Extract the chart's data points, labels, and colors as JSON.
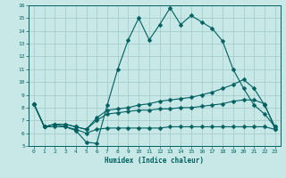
{
  "xlabel": "Humidex (Indice chaleur)",
  "bg_color": "#c8e8e8",
  "grid_color": "#a0c8c8",
  "line_color": "#006060",
  "xlim": [
    -0.5,
    23.5
  ],
  "ylim": [
    5,
    16
  ],
  "xticks": [
    0,
    1,
    2,
    3,
    4,
    5,
    6,
    7,
    8,
    9,
    10,
    11,
    12,
    13,
    14,
    15,
    16,
    17,
    18,
    19,
    20,
    21,
    22,
    23
  ],
  "yticks": [
    5,
    6,
    7,
    8,
    9,
    10,
    11,
    12,
    13,
    14,
    15,
    16
  ],
  "series1_y": [
    8.3,
    6.5,
    6.7,
    6.5,
    6.2,
    5.3,
    5.2,
    8.2,
    11.0,
    13.3,
    15.0,
    13.3,
    14.5,
    15.8,
    14.5,
    15.2,
    14.7,
    14.2,
    13.2,
    11.0,
    9.5,
    8.2,
    7.5,
    6.5
  ],
  "series2_y": [
    8.3,
    6.5,
    6.7,
    6.7,
    6.5,
    6.3,
    7.2,
    7.8,
    7.9,
    8.0,
    8.2,
    8.3,
    8.5,
    8.6,
    8.7,
    8.8,
    9.0,
    9.2,
    9.5,
    9.8,
    10.2,
    9.5,
    8.2,
    6.5
  ],
  "series3_y": [
    8.3,
    6.5,
    6.7,
    6.7,
    6.5,
    6.3,
    7.0,
    7.5,
    7.6,
    7.7,
    7.8,
    7.8,
    7.9,
    7.9,
    8.0,
    8.0,
    8.1,
    8.2,
    8.3,
    8.5,
    8.6,
    8.6,
    8.3,
    6.3
  ],
  "series4_y": [
    8.3,
    6.5,
    6.5,
    6.5,
    6.3,
    6.0,
    6.3,
    6.4,
    6.4,
    6.4,
    6.4,
    6.4,
    6.4,
    6.5,
    6.5,
    6.5,
    6.5,
    6.5,
    6.5,
    6.5,
    6.5,
    6.5,
    6.5,
    6.3
  ]
}
